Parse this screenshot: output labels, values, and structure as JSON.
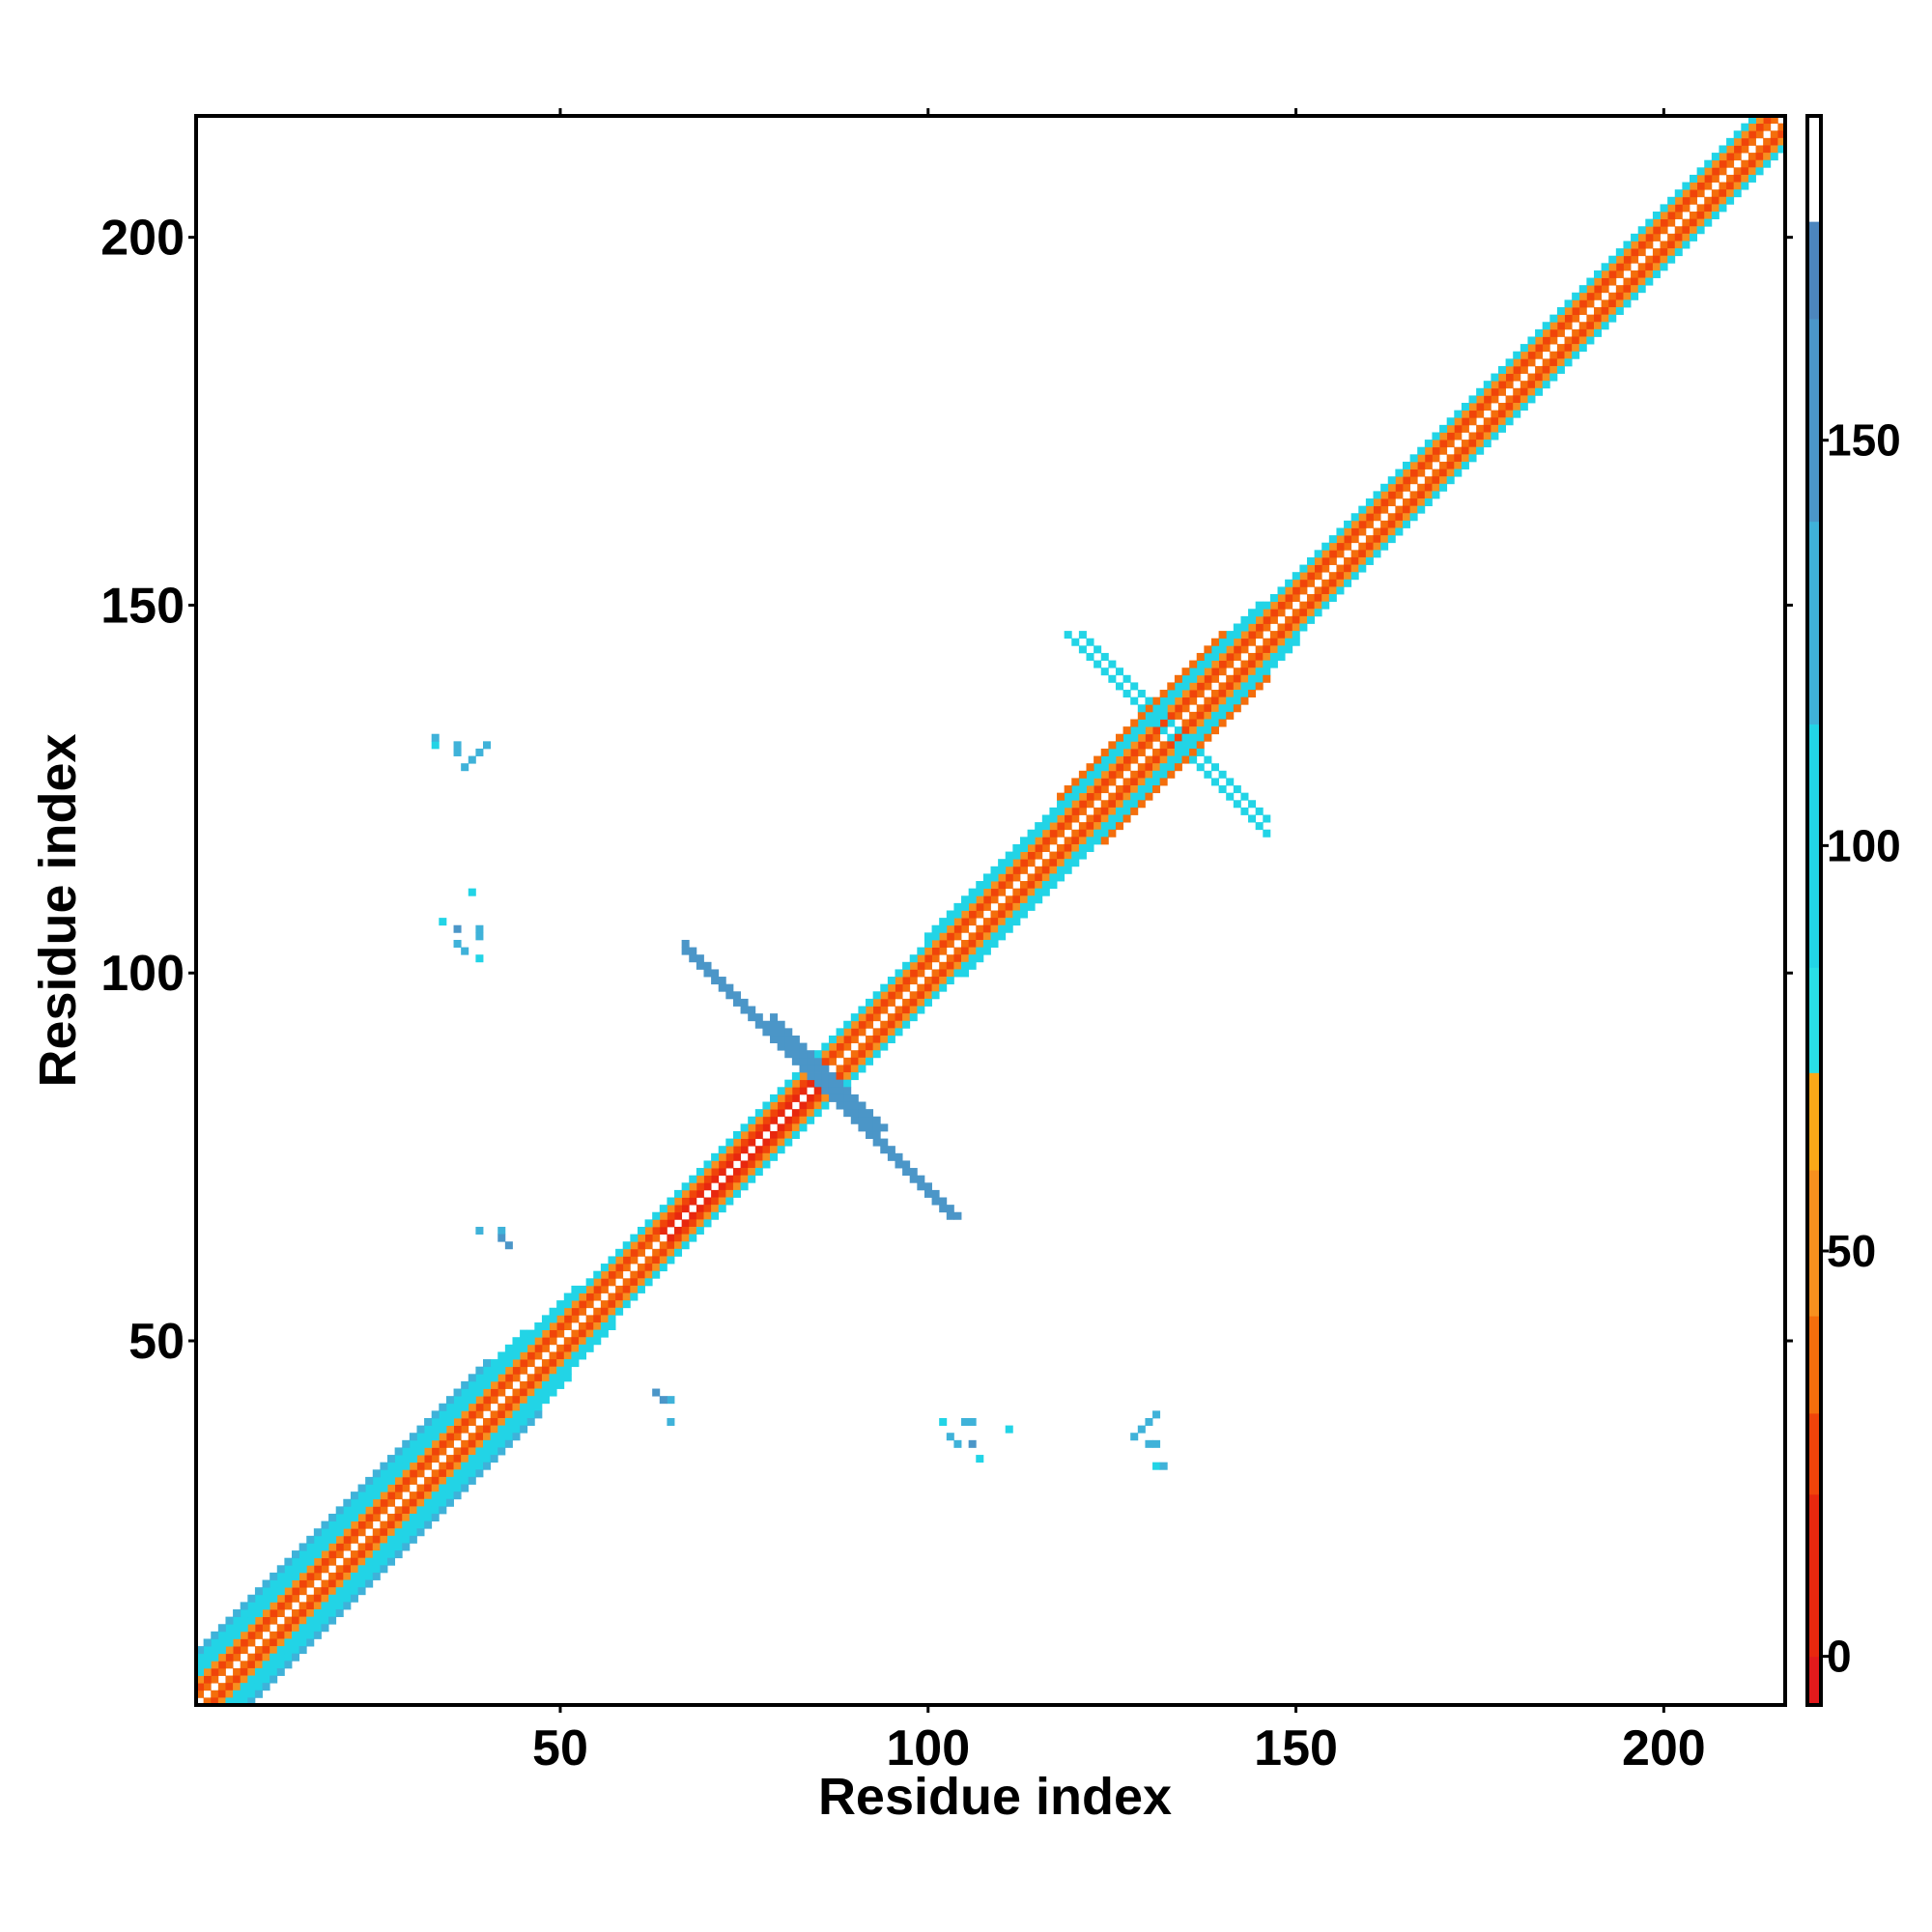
{
  "chart_data": {
    "type": "heatmap",
    "title": "",
    "xlabel": "Residue index",
    "ylabel": "Residue index",
    "xlim": [
      0.5,
      216.5
    ],
    "ylim": [
      0.5,
      216.5
    ],
    "x_ticks": [
      50,
      100,
      150,
      200
    ],
    "y_ticks": [
      50,
      100,
      150,
      200
    ],
    "grid": false,
    "diagonal_residues": [
      1,
      216
    ],
    "colorbar": {
      "range": [
        -6,
        190
      ],
      "ticks": [
        0,
        50,
        100,
        150
      ],
      "bins": [
        {
          "from": -6,
          "to": 0,
          "color": "#e31a1c"
        },
        {
          "from": 0,
          "to": 20,
          "color": "#e8280e"
        },
        {
          "from": 20,
          "to": 30,
          "color": "#f0440a"
        },
        {
          "from": 30,
          "to": 42,
          "color": "#f46e0c"
        },
        {
          "from": 42,
          "to": 60,
          "color": "#f7901e"
        },
        {
          "from": 60,
          "to": 72,
          "color": "#f9a818"
        },
        {
          "from": 72,
          "to": 85,
          "color": "#29dfe6"
        },
        {
          "from": 85,
          "to": 115,
          "color": "#22d4e6"
        },
        {
          "from": 115,
          "to": 140,
          "color": "#3fb2d9"
        },
        {
          "from": 140,
          "to": 165,
          "color": "#4b96c8"
        },
        {
          "from": 165,
          "to": 177,
          "color": "#4c86be"
        },
        {
          "from": 177,
          "to": 190,
          "color": "#ffffff"
        }
      ]
    },
    "regions": [
      {
        "kind": "diagonal",
        "from": 1,
        "to": 216,
        "offset": 0,
        "value": 185
      },
      {
        "kind": "diagonal",
        "from": 1,
        "to": 216,
        "offset": 1,
        "value": 40
      },
      {
        "kind": "diagonal",
        "from": 1,
        "to": 216,
        "offset": 2,
        "value": 25
      },
      {
        "kind": "diagonal",
        "from": 1,
        "to": 216,
        "offset": 3,
        "value": 45
      },
      {
        "kind": "diagonal",
        "from": 1,
        "to": 216,
        "offset": 4,
        "value": 95
      },
      {
        "kind": "diagonal",
        "from": 1,
        "to": 52,
        "offset": 5,
        "value": 95
      },
      {
        "kind": "diagonal",
        "from": 1,
        "to": 45,
        "offset": 6,
        "value": 95
      },
      {
        "kind": "diagonal",
        "from": 1,
        "to": 40,
        "offset": 7,
        "value": 120
      },
      {
        "kind": "diagonal",
        "from": 100,
        "to": 145,
        "offset": 5,
        "value": 95
      },
      {
        "kind": "diagonal",
        "from": 118,
        "to": 140,
        "offset": 6,
        "value": 40
      },
      {
        "kind": "diagonal",
        "from": 64,
        "to": 86,
        "offset": 1,
        "value": 5
      },
      {
        "kind": "anti",
        "from": 67,
        "to": 103,
        "sum": 170,
        "width": 2,
        "value": 150
      },
      {
        "kind": "anti",
        "from": 79,
        "to": 91,
        "sum": 172,
        "width": 2,
        "value": 160
      },
      {
        "kind": "anti",
        "from": 120,
        "to": 146,
        "sum": 265,
        "width": 1,
        "value": 95
      },
      {
        "kind": "anti",
        "from": 121,
        "to": 143,
        "sum": 267,
        "width": 1,
        "value": 90
      }
    ],
    "patches": [
      {
        "x": 33,
        "y": 131,
        "value": 110
      },
      {
        "x": 36,
        "y": 130,
        "value": 135
      },
      {
        "x": 37,
        "y": 128,
        "value": 125
      },
      {
        "x": 39,
        "y": 130,
        "value": 130
      },
      {
        "x": 34,
        "y": 107,
        "value": 110
      },
      {
        "x": 36,
        "y": 106,
        "value": 140
      },
      {
        "x": 37,
        "y": 103,
        "value": 135
      },
      {
        "x": 38,
        "y": 111,
        "value": 110
      },
      {
        "x": 39,
        "y": 105,
        "value": 125
      },
      {
        "x": 39,
        "y": 102,
        "value": 130
      },
      {
        "x": 39,
        "y": 65,
        "value": 130
      },
      {
        "x": 42,
        "y": 65,
        "value": 145
      },
      {
        "x": 42,
        "y": 64,
        "value": 145
      },
      {
        "x": 63,
        "y": 43,
        "value": 140
      },
      {
        "x": 65,
        "y": 42,
        "value": 130
      },
      {
        "x": 65,
        "y": 39,
        "value": 125
      },
      {
        "x": 102,
        "y": 39,
        "value": 105
      },
      {
        "x": 104,
        "y": 36,
        "value": 120
      },
      {
        "x": 106,
        "y": 39,
        "value": 130
      },
      {
        "x": 107,
        "y": 34,
        "value": 110
      },
      {
        "x": 111,
        "y": 38,
        "value": 110
      },
      {
        "x": 129,
        "y": 38,
        "value": 120
      },
      {
        "x": 131,
        "y": 40,
        "value": 130
      },
      {
        "x": 131,
        "y": 36,
        "value": 125
      },
      {
        "x": 132,
        "y": 33,
        "value": 130
      }
    ]
  }
}
